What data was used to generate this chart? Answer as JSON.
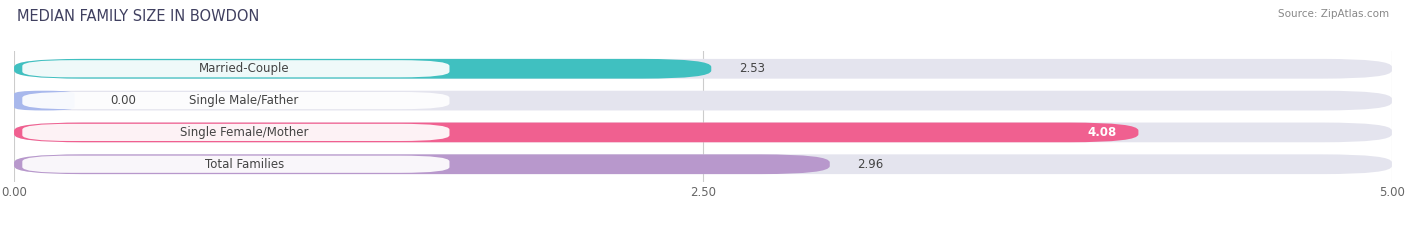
{
  "title": "MEDIAN FAMILY SIZE IN BOWDON",
  "source": "Source: ZipAtlas.com",
  "categories": [
    "Married-Couple",
    "Single Male/Father",
    "Single Female/Mother",
    "Total Families"
  ],
  "values": [
    2.53,
    0.0,
    4.08,
    2.96
  ],
  "bar_colors": [
    "#40c0c0",
    "#a8b8ec",
    "#f06090",
    "#b898cc"
  ],
  "bar_bg_color": "#e4e4ee",
  "xlim": [
    0,
    5.0
  ],
  "xticks": [
    0.0,
    2.5,
    5.0
  ],
  "xtick_labels": [
    "0.00",
    "2.50",
    "5.00"
  ],
  "background_color": "#ffffff",
  "label_fontsize": 8.5,
  "value_fontsize": 8.5,
  "title_fontsize": 10.5,
  "source_fontsize": 7.5
}
